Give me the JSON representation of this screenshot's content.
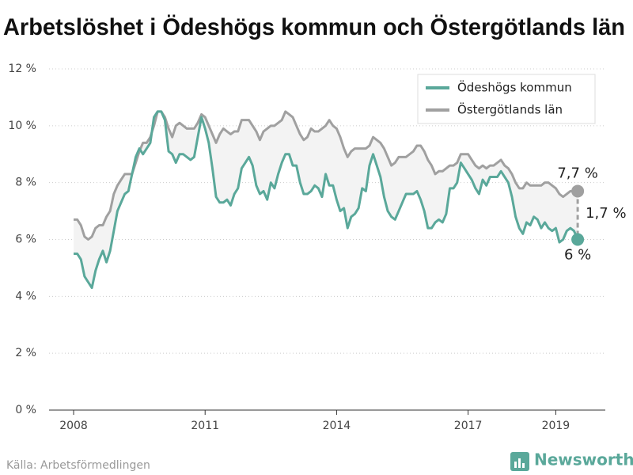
{
  "chart_data": {
    "type": "line",
    "title": "Arbetslöshet i Ödeshögs kommun och Östergötlands län",
    "source": "Källa: Arbetsförmedlingen",
    "brand": "Newsworthy",
    "x": [
      2008,
      2008.083,
      2008.167,
      2008.25,
      2008.333,
      2008.417,
      2008.5,
      2008.583,
      2008.667,
      2008.75,
      2008.833,
      2008.917,
      2009,
      2009.083,
      2009.167,
      2009.25,
      2009.333,
      2009.417,
      2009.5,
      2009.583,
      2009.667,
      2009.75,
      2009.833,
      2009.917,
      2010,
      2010.083,
      2010.167,
      2010.25,
      2010.333,
      2010.417,
      2010.5,
      2010.583,
      2010.667,
      2010.75,
      2010.833,
      2010.917,
      2011,
      2011.083,
      2011.167,
      2011.25,
      2011.333,
      2011.417,
      2011.5,
      2011.583,
      2011.667,
      2011.75,
      2011.833,
      2011.917,
      2012,
      2012.083,
      2012.167,
      2012.25,
      2012.333,
      2012.417,
      2012.5,
      2012.583,
      2012.667,
      2012.75,
      2012.833,
      2012.917,
      2013,
      2013.083,
      2013.167,
      2013.25,
      2013.333,
      2013.417,
      2013.5,
      2013.583,
      2013.667,
      2013.75,
      2013.833,
      2013.917,
      2014,
      2014.083,
      2014.167,
      2014.25,
      2014.333,
      2014.417,
      2014.5,
      2014.583,
      2014.667,
      2014.75,
      2014.833,
      2014.917,
      2015,
      2015.083,
      2015.167,
      2015.25,
      2015.333,
      2015.417,
      2015.5,
      2015.583,
      2015.667,
      2015.75,
      2015.833,
      2015.917,
      2016,
      2016.083,
      2016.167,
      2016.25,
      2016.333,
      2016.417,
      2016.5,
      2016.583,
      2016.667,
      2016.75,
      2016.833,
      2016.917,
      2017,
      2017.083,
      2017.167,
      2017.25,
      2017.333,
      2017.417,
      2017.5,
      2017.583,
      2017.667,
      2017.75,
      2017.833,
      2017.917,
      2018,
      2018.083,
      2018.167,
      2018.25,
      2018.333,
      2018.417,
      2018.5,
      2018.583,
      2018.667,
      2018.75,
      2018.833,
      2018.917,
      2019,
      2019.083,
      2019.167,
      2019.25,
      2019.333,
      2019.417,
      2019.5
    ],
    "series": [
      {
        "name": "Ödeshögs kommun",
        "color": "#5aa89a",
        "values": [
          5.5,
          5.5,
          5.3,
          4.7,
          4.5,
          4.3,
          4.9,
          5.3,
          5.6,
          5.2,
          5.6,
          6.3,
          7.0,
          7.3,
          7.6,
          7.7,
          8.3,
          8.9,
          9.2,
          9.0,
          9.2,
          9.4,
          10.3,
          10.5,
          10.5,
          10.2,
          9.1,
          9.0,
          8.7,
          9.0,
          9.0,
          8.9,
          8.8,
          8.9,
          9.6,
          10.3,
          9.9,
          9.4,
          8.5,
          7.5,
          7.3,
          7.3,
          7.4,
          7.2,
          7.6,
          7.8,
          8.5,
          8.7,
          8.9,
          8.6,
          7.9,
          7.6,
          7.7,
          7.4,
          8.0,
          7.8,
          8.3,
          8.7,
          9.0,
          9.0,
          8.6,
          8.6,
          8.0,
          7.6,
          7.6,
          7.7,
          7.9,
          7.8,
          7.5,
          8.3,
          7.9,
          7.9,
          7.4,
          7.0,
          7.1,
          6.4,
          6.8,
          6.9,
          7.1,
          7.8,
          7.7,
          8.6,
          9.0,
          8.6,
          8.2,
          7.5,
          7.0,
          6.8,
          6.7,
          7.0,
          7.3,
          7.6,
          7.6,
          7.6,
          7.7,
          7.4,
          7.0,
          6.4,
          6.4,
          6.6,
          6.7,
          6.6,
          6.9,
          7.8,
          7.8,
          8.0,
          8.7,
          8.5,
          8.3,
          8.1,
          7.8,
          7.6,
          8.1,
          7.9,
          8.2,
          8.2,
          8.2,
          8.4,
          8.2,
          8.0,
          7.5,
          6.8,
          6.4,
          6.2,
          6.6,
          6.5,
          6.8,
          6.7,
          6.4,
          6.6,
          6.4,
          6.3,
          6.4,
          5.9,
          6.0,
          6.3,
          6.4,
          6.3,
          6.0
        ]
      },
      {
        "name": "Östergötlands län",
        "color": "#a0a0a0",
        "values": [
          6.7,
          6.7,
          6.5,
          6.1,
          6.0,
          6.1,
          6.4,
          6.5,
          6.5,
          6.8,
          7.0,
          7.6,
          7.9,
          8.1,
          8.3,
          8.3,
          8.3,
          8.7,
          9.1,
          9.4,
          9.4,
          9.6,
          10.0,
          10.5,
          10.5,
          10.3,
          9.9,
          9.6,
          10.0,
          10.1,
          10.0,
          9.9,
          9.9,
          9.9,
          10.1,
          10.4,
          10.3,
          10.0,
          9.7,
          9.4,
          9.7,
          9.9,
          9.8,
          9.7,
          9.8,
          9.8,
          10.2,
          10.2,
          10.2,
          10.0,
          9.8,
          9.5,
          9.8,
          9.9,
          10.0,
          10.0,
          10.1,
          10.2,
          10.5,
          10.4,
          10.3,
          10.0,
          9.7,
          9.5,
          9.6,
          9.9,
          9.8,
          9.8,
          9.9,
          10.0,
          10.2,
          10.0,
          9.9,
          9.6,
          9.2,
          8.9,
          9.1,
          9.2,
          9.2,
          9.2,
          9.2,
          9.3,
          9.6,
          9.5,
          9.4,
          9.2,
          8.9,
          8.6,
          8.7,
          8.9,
          8.9,
          8.9,
          9.0,
          9.1,
          9.3,
          9.3,
          9.1,
          8.8,
          8.6,
          8.3,
          8.4,
          8.4,
          8.5,
          8.6,
          8.6,
          8.7,
          9.0,
          9.0,
          9.0,
          8.8,
          8.6,
          8.5,
          8.6,
          8.5,
          8.6,
          8.6,
          8.7,
          8.8,
          8.6,
          8.5,
          8.3,
          8.0,
          7.8,
          7.8,
          8.0,
          7.9,
          7.9,
          7.9,
          7.9,
          8.0,
          8.0,
          7.9,
          7.8,
          7.6,
          7.5,
          7.6,
          7.7,
          7.7,
          7.7
        ]
      }
    ],
    "annotations": [
      {
        "value": 7.7,
        "label": "7,7 %"
      },
      {
        "value": 6,
        "label": "6 %"
      },
      {
        "value": 1.7,
        "label": "1,7 %"
      }
    ],
    "xlim": [
      2007.44,
      2020.13
    ],
    "xticks": [
      2008,
      2011,
      2014,
      2017,
      2019
    ],
    "ylim": [
      0,
      12
    ],
    "yticks": [
      {
        "value": 0,
        "label": "0 %"
      },
      {
        "value": 2,
        "label": "2 %"
      },
      {
        "value": 4,
        "label": "4 %"
      },
      {
        "value": 6,
        "label": "6 %"
      },
      {
        "value": 8,
        "label": "8 %"
      },
      {
        "value": 10,
        "label": "10 %"
      },
      {
        "value": 12,
        "label": "12 %"
      }
    ],
    "grid": true,
    "legend": "top-right"
  }
}
